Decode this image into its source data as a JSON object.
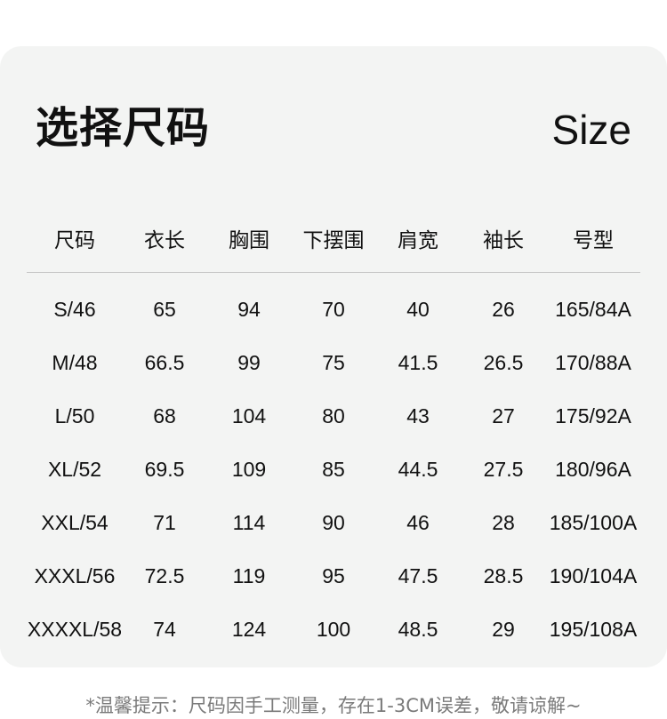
{
  "title": "选择尺码",
  "subtitle": "Size",
  "table": {
    "headers": [
      "尺码",
      "衣长",
      "胸围",
      "下摆围",
      "肩宽",
      "袖长",
      "号型"
    ],
    "rows": [
      [
        "S/46",
        "65",
        "94",
        "70",
        "40",
        "26",
        "165/84A"
      ],
      [
        "M/48",
        "66.5",
        "99",
        "75",
        "41.5",
        "26.5",
        "170/88A"
      ],
      [
        "L/50",
        "68",
        "104",
        "80",
        "43",
        "27",
        "175/92A"
      ],
      [
        "XL/52",
        "69.5",
        "109",
        "85",
        "44.5",
        "27.5",
        "180/96A"
      ],
      [
        "XXL/54",
        "71",
        "114",
        "90",
        "46",
        "28",
        "185/100A"
      ],
      [
        "XXXL/56",
        "72.5",
        "119",
        "95",
        "47.5",
        "28.5",
        "190/104A"
      ],
      [
        "XXXXL/58",
        "74",
        "124",
        "100",
        "48.5",
        "29",
        "195/108A"
      ]
    ]
  },
  "note": "*温馨提示：尺码因手工测量，存在1-3CM误差，敬请谅解~",
  "colors": {
    "card_background": "#f3f4f3",
    "note_text": "#7a7a7a",
    "divider": "#c4c4c4"
  }
}
